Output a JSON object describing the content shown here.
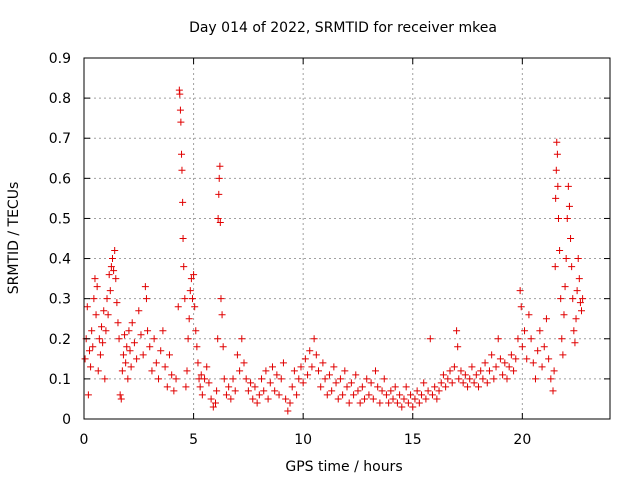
{
  "chart_data": {
    "type": "scatter",
    "title": "Day 014 of 2022, SRMTID for receiver mkea",
    "xlabel": "GPS time / hours",
    "ylabel": "SRMTID / TECUs",
    "xlim": [
      0,
      24
    ],
    "ylim": [
      0,
      0.9
    ],
    "xticks": [
      0,
      5,
      10,
      15,
      20
    ],
    "xtick_labels": [
      "0",
      "5",
      "10",
      "15",
      "20"
    ],
    "yticks": [
      0,
      0.1,
      0.2,
      0.3,
      0.4,
      0.5,
      0.6,
      0.7,
      0.8,
      0.9
    ],
    "ytick_labels": [
      "0",
      "0.1",
      "0.2",
      "0.3",
      "0.4",
      "0.5",
      "0.6",
      "0.7",
      "0.8",
      "0.9"
    ],
    "grid": true,
    "marker": "+",
    "marker_color": "#e00000",
    "series": [
      {
        "name": "mkea",
        "points": [
          [
            0.05,
            0.15
          ],
          [
            0.1,
            0.2
          ],
          [
            0.15,
            0.28
          ],
          [
            0.2,
            0.06
          ],
          [
            0.25,
            0.17
          ],
          [
            0.3,
            0.13
          ],
          [
            0.35,
            0.22
          ],
          [
            0.4,
            0.18
          ],
          [
            0.45,
            0.3
          ],
          [
            0.5,
            0.35
          ],
          [
            0.55,
            0.26
          ],
          [
            0.6,
            0.33
          ],
          [
            0.65,
            0.12
          ],
          [
            0.7,
            0.2
          ],
          [
            0.75,
            0.16
          ],
          [
            0.8,
            0.23
          ],
          [
            0.85,
            0.19
          ],
          [
            0.9,
            0.27
          ],
          [
            0.95,
            0.1
          ],
          [
            1.0,
            0.22
          ],
          [
            1.05,
            0.3
          ],
          [
            1.1,
            0.26
          ],
          [
            1.15,
            0.36
          ],
          [
            1.2,
            0.32
          ],
          [
            1.25,
            0.38
          ],
          [
            1.3,
            0.4
          ],
          [
            1.35,
            0.37
          ],
          [
            1.4,
            0.42
          ],
          [
            1.45,
            0.35
          ],
          [
            1.5,
            0.29
          ],
          [
            1.55,
            0.24
          ],
          [
            1.6,
            0.2
          ],
          [
            1.65,
            0.06
          ],
          [
            1.7,
            0.05
          ],
          [
            1.75,
            0.12
          ],
          [
            1.8,
            0.16
          ],
          [
            1.85,
            0.21
          ],
          [
            1.9,
            0.14
          ],
          [
            1.95,
            0.18
          ],
          [
            2.0,
            0.1
          ],
          [
            2.05,
            0.22
          ],
          [
            2.1,
            0.17
          ],
          [
            2.15,
            0.13
          ],
          [
            2.2,
            0.24
          ],
          [
            2.3,
            0.19
          ],
          [
            2.4,
            0.15
          ],
          [
            2.5,
            0.27
          ],
          [
            2.6,
            0.21
          ],
          [
            2.7,
            0.16
          ],
          [
            2.8,
            0.33
          ],
          [
            2.85,
            0.3
          ],
          [
            2.9,
            0.22
          ],
          [
            3.0,
            0.18
          ],
          [
            3.1,
            0.12
          ],
          [
            3.2,
            0.2
          ],
          [
            3.3,
            0.14
          ],
          [
            3.4,
            0.1
          ],
          [
            3.5,
            0.17
          ],
          [
            3.6,
            0.22
          ],
          [
            3.7,
            0.13
          ],
          [
            3.8,
            0.08
          ],
          [
            3.9,
            0.16
          ],
          [
            4.0,
            0.11
          ],
          [
            4.1,
            0.07
          ],
          [
            4.2,
            0.1
          ],
          [
            4.3,
            0.28
          ],
          [
            4.35,
            0.82
          ],
          [
            4.37,
            0.81
          ],
          [
            4.4,
            0.77
          ],
          [
            4.42,
            0.74
          ],
          [
            4.45,
            0.66
          ],
          [
            4.47,
            0.62
          ],
          [
            4.5,
            0.54
          ],
          [
            4.52,
            0.45
          ],
          [
            4.55,
            0.38
          ],
          [
            4.6,
            0.3
          ],
          [
            4.65,
            0.08
          ],
          [
            4.7,
            0.12
          ],
          [
            4.75,
            0.2
          ],
          [
            4.8,
            0.25
          ],
          [
            4.85,
            0.32
          ],
          [
            4.9,
            0.35
          ],
          [
            4.95,
            0.3
          ],
          [
            5.0,
            0.36
          ],
          [
            5.05,
            0.28
          ],
          [
            5.1,
            0.22
          ],
          [
            5.15,
            0.18
          ],
          [
            5.2,
            0.14
          ],
          [
            5.25,
            0.1
          ],
          [
            5.3,
            0.08
          ],
          [
            5.35,
            0.11
          ],
          [
            5.4,
            0.06
          ],
          [
            5.5,
            0.1
          ],
          [
            5.6,
            0.13
          ],
          [
            5.7,
            0.09
          ],
          [
            5.8,
            0.05
          ],
          [
            5.9,
            0.03
          ],
          [
            6.0,
            0.04
          ],
          [
            6.05,
            0.07
          ],
          [
            6.1,
            0.2
          ],
          [
            6.12,
            0.5
          ],
          [
            6.15,
            0.56
          ],
          [
            6.17,
            0.6
          ],
          [
            6.2,
            0.63
          ],
          [
            6.22,
            0.49
          ],
          [
            6.25,
            0.3
          ],
          [
            6.3,
            0.26
          ],
          [
            6.35,
            0.18
          ],
          [
            6.4,
            0.1
          ],
          [
            6.5,
            0.06
          ],
          [
            6.6,
            0.08
          ],
          [
            6.7,
            0.05
          ],
          [
            6.8,
            0.1
          ],
          [
            6.9,
            0.07
          ],
          [
            7.0,
            0.16
          ],
          [
            7.1,
            0.12
          ],
          [
            7.2,
            0.2
          ],
          [
            7.3,
            0.14
          ],
          [
            7.4,
            0.1
          ],
          [
            7.5,
            0.07
          ],
          [
            7.6,
            0.09
          ],
          [
            7.7,
            0.05
          ],
          [
            7.8,
            0.08
          ],
          [
            7.9,
            0.04
          ],
          [
            8.0,
            0.06
          ],
          [
            8.1,
            0.1
          ],
          [
            8.2,
            0.07
          ],
          [
            8.3,
            0.12
          ],
          [
            8.4,
            0.05
          ],
          [
            8.5,
            0.09
          ],
          [
            8.6,
            0.13
          ],
          [
            8.7,
            0.07
          ],
          [
            8.8,
            0.11
          ],
          [
            8.9,
            0.06
          ],
          [
            9.0,
            0.1
          ],
          [
            9.1,
            0.14
          ],
          [
            9.2,
            0.05
          ],
          [
            9.3,
            0.02
          ],
          [
            9.4,
            0.04
          ],
          [
            9.5,
            0.08
          ],
          [
            9.6,
            0.12
          ],
          [
            9.7,
            0.06
          ],
          [
            9.8,
            0.1
          ],
          [
            9.9,
            0.13
          ],
          [
            10.0,
            0.09
          ],
          [
            10.1,
            0.15
          ],
          [
            10.2,
            0.11
          ],
          [
            10.3,
            0.17
          ],
          [
            10.4,
            0.13
          ],
          [
            10.5,
            0.2
          ],
          [
            10.6,
            0.16
          ],
          [
            10.7,
            0.12
          ],
          [
            10.8,
            0.08
          ],
          [
            10.9,
            0.14
          ],
          [
            11.0,
            0.1
          ],
          [
            11.1,
            0.06
          ],
          [
            11.2,
            0.11
          ],
          [
            11.3,
            0.07
          ],
          [
            11.4,
            0.13
          ],
          [
            11.5,
            0.09
          ],
          [
            11.6,
            0.05
          ],
          [
            11.7,
            0.1
          ],
          [
            11.8,
            0.06
          ],
          [
            11.9,
            0.12
          ],
          [
            12.0,
            0.08
          ],
          [
            12.1,
            0.04
          ],
          [
            12.2,
            0.09
          ],
          [
            12.3,
            0.06
          ],
          [
            12.4,
            0.11
          ],
          [
            12.5,
            0.07
          ],
          [
            12.6,
            0.04
          ],
          [
            12.7,
            0.08
          ],
          [
            12.8,
            0.05
          ],
          [
            12.9,
            0.1
          ],
          [
            13.0,
            0.06
          ],
          [
            13.1,
            0.09
          ],
          [
            13.2,
            0.05
          ],
          [
            13.3,
            0.12
          ],
          [
            13.4,
            0.08
          ],
          [
            13.5,
            0.04
          ],
          [
            13.6,
            0.07
          ],
          [
            13.7,
            0.1
          ],
          [
            13.8,
            0.06
          ],
          [
            13.9,
            0.04
          ],
          [
            14.0,
            0.07
          ],
          [
            14.1,
            0.05
          ],
          [
            14.2,
            0.08
          ],
          [
            14.3,
            0.04
          ],
          [
            14.4,
            0.06
          ],
          [
            14.5,
            0.03
          ],
          [
            14.6,
            0.05
          ],
          [
            14.7,
            0.08
          ],
          [
            14.8,
            0.04
          ],
          [
            14.9,
            0.06
          ],
          [
            15.0,
            0.03
          ],
          [
            15.1,
            0.05
          ],
          [
            15.2,
            0.07
          ],
          [
            15.3,
            0.04
          ],
          [
            15.4,
            0.06
          ],
          [
            15.5,
            0.09
          ],
          [
            15.6,
            0.05
          ],
          [
            15.7,
            0.07
          ],
          [
            15.8,
            0.2
          ],
          [
            15.9,
            0.06
          ],
          [
            16.0,
            0.08
          ],
          [
            16.1,
            0.05
          ],
          [
            16.2,
            0.07
          ],
          [
            16.3,
            0.09
          ],
          [
            16.4,
            0.11
          ],
          [
            16.5,
            0.08
          ],
          [
            16.6,
            0.1
          ],
          [
            16.7,
            0.12
          ],
          [
            16.8,
            0.09
          ],
          [
            16.9,
            0.13
          ],
          [
            17.0,
            0.22
          ],
          [
            17.05,
            0.18
          ],
          [
            17.1,
            0.1
          ],
          [
            17.2,
            0.12
          ],
          [
            17.3,
            0.09
          ],
          [
            17.4,
            0.11
          ],
          [
            17.5,
            0.08
          ],
          [
            17.6,
            0.1
          ],
          [
            17.7,
            0.13
          ],
          [
            17.8,
            0.09
          ],
          [
            17.9,
            0.11
          ],
          [
            18.0,
            0.08
          ],
          [
            18.1,
            0.12
          ],
          [
            18.2,
            0.1
          ],
          [
            18.3,
            0.14
          ],
          [
            18.4,
            0.09
          ],
          [
            18.5,
            0.12
          ],
          [
            18.6,
            0.16
          ],
          [
            18.7,
            0.1
          ],
          [
            18.8,
            0.13
          ],
          [
            18.9,
            0.2
          ],
          [
            19.0,
            0.15
          ],
          [
            19.1,
            0.11
          ],
          [
            19.2,
            0.14
          ],
          [
            19.3,
            0.1
          ],
          [
            19.4,
            0.13
          ],
          [
            19.5,
            0.16
          ],
          [
            19.6,
            0.12
          ],
          [
            19.7,
            0.15
          ],
          [
            19.8,
            0.2
          ],
          [
            19.9,
            0.32
          ],
          [
            19.95,
            0.28
          ],
          [
            20.0,
            0.18
          ],
          [
            20.1,
            0.22
          ],
          [
            20.2,
            0.15
          ],
          [
            20.3,
            0.26
          ],
          [
            20.4,
            0.2
          ],
          [
            20.5,
            0.14
          ],
          [
            20.6,
            0.1
          ],
          [
            20.7,
            0.17
          ],
          [
            20.8,
            0.22
          ],
          [
            20.9,
            0.13
          ],
          [
            21.0,
            0.18
          ],
          [
            21.1,
            0.25
          ],
          [
            21.2,
            0.15
          ],
          [
            21.3,
            0.1
          ],
          [
            21.4,
            0.07
          ],
          [
            21.45,
            0.12
          ],
          [
            21.5,
            0.38
          ],
          [
            21.52,
            0.55
          ],
          [
            21.55,
            0.62
          ],
          [
            21.57,
            0.69
          ],
          [
            21.6,
            0.66
          ],
          [
            21.62,
            0.58
          ],
          [
            21.65,
            0.5
          ],
          [
            21.7,
            0.42
          ],
          [
            21.75,
            0.3
          ],
          [
            21.8,
            0.2
          ],
          [
            21.85,
            0.16
          ],
          [
            21.9,
            0.26
          ],
          [
            21.95,
            0.33
          ],
          [
            22.0,
            0.4
          ],
          [
            22.05,
            0.5
          ],
          [
            22.1,
            0.58
          ],
          [
            22.15,
            0.53
          ],
          [
            22.2,
            0.45
          ],
          [
            22.25,
            0.38
          ],
          [
            22.3,
            0.3
          ],
          [
            22.35,
            0.22
          ],
          [
            22.4,
            0.19
          ],
          [
            22.45,
            0.25
          ],
          [
            22.5,
            0.32
          ],
          [
            22.55,
            0.4
          ],
          [
            22.6,
            0.35
          ],
          [
            22.65,
            0.29
          ],
          [
            22.7,
            0.27
          ],
          [
            22.75,
            0.3
          ]
        ]
      }
    ]
  }
}
